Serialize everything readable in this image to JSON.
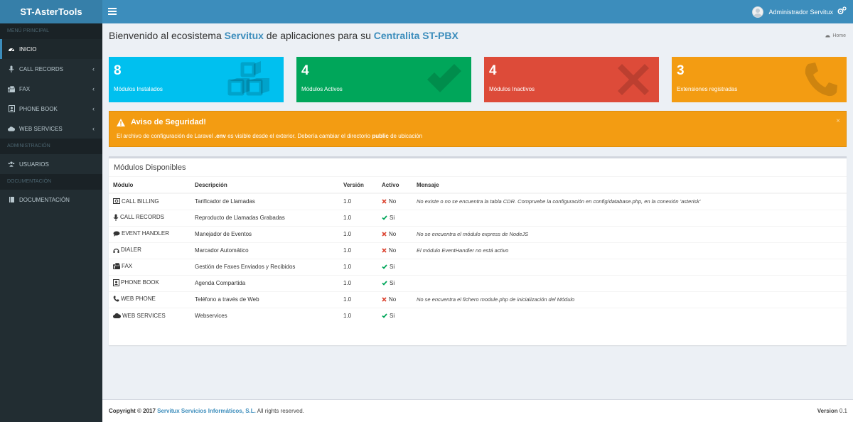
{
  "header": {
    "logo": "ST-AsterTools",
    "user_name": "Administrador Servitux",
    "icons": [
      "bars-icon",
      "user-avatar",
      "gears-icon"
    ]
  },
  "sidebar": {
    "sections": [
      {
        "title": "MENÚ PRINCIPAL",
        "items": [
          {
            "label": "INICIO",
            "icon": "dashboard-icon",
            "active": true,
            "chevron": false
          },
          {
            "label": "CALL RECORDS",
            "icon": "microphone-icon",
            "active": false,
            "chevron": true
          },
          {
            "label": "FAX",
            "icon": "fax-icon",
            "active": false,
            "chevron": true
          },
          {
            "label": "PHONE BOOK",
            "icon": "contact-book-icon",
            "active": false,
            "chevron": true
          },
          {
            "label": "WEB SERVICES",
            "icon": "cloud-icon",
            "active": false,
            "chevron": true
          }
        ]
      },
      {
        "title": "ADMINISTRACIÓN",
        "items": [
          {
            "label": "USUARIOS",
            "icon": "users-icon",
            "active": false,
            "chevron": false
          }
        ]
      },
      {
        "title": "DOCUMENTACIÓN",
        "items": [
          {
            "label": "DOCUMENTACIÓN",
            "icon": "book-icon",
            "active": false,
            "chevron": false
          }
        ]
      }
    ]
  },
  "page": {
    "title_part1": "Bienvenido al ecosistema ",
    "title_hl1": "Servitux",
    "title_part2": " de aplicaciones para su ",
    "title_hl2": "Centralita ST-PBX",
    "breadcrumb": "Home"
  },
  "stats": [
    {
      "value": "8",
      "label": "Módulos Instalados",
      "color": "#00c0ef",
      "icon": "cubes-icon"
    },
    {
      "value": "4",
      "label": "Módulos Activos",
      "color": "#00a65a",
      "icon": "check-icon"
    },
    {
      "value": "4",
      "label": "Módulos Inactivos",
      "color": "#dd4b39",
      "icon": "times-icon"
    },
    {
      "value": "3",
      "label": "Extensiones registradas",
      "color": "#f39c12",
      "icon": "phone-icon"
    }
  ],
  "alert": {
    "title": "Aviso de Seguridad!",
    "msg_part1": "El archivo de configuración de Laravel ",
    "msg_bold1": ".env",
    "msg_part2": " es visible desde el exterior. Debería cambiar el directorio ",
    "msg_bold2": "public",
    "msg_part3": " de ubicación",
    "close": "×"
  },
  "modules": {
    "title": "Módulos Disponibles",
    "columns": [
      "Módulo",
      "Descripción",
      "Versión",
      "Activo",
      "Mensaje"
    ],
    "rows": [
      {
        "name": "CALL BILLING",
        "icon": "money-icon",
        "desc": "Tarificador de Llamadas",
        "version": "1.0",
        "active": "No",
        "message": "No existe o no se encuentra la tabla CDR. Compruebe la configuración en config/database.php, en la conexión 'asterisk'"
      },
      {
        "name": "CALL RECORDS",
        "icon": "microphone-icon",
        "desc": "Reproducto de Llamadas Grabadas",
        "version": "1.0",
        "active": "Si",
        "message": ""
      },
      {
        "name": "EVENT HANDLER",
        "icon": "comments-icon",
        "desc": "Manejador de Eventos",
        "version": "1.0",
        "active": "No",
        "message": "No se encuentra el módulo express de NodeJS"
      },
      {
        "name": "DIALER",
        "icon": "headphones-icon",
        "desc": "Marcador Automático",
        "version": "1.0",
        "active": "No",
        "message": "El módulo EventHandler no está activo"
      },
      {
        "name": "FAX",
        "icon": "fax-icon",
        "desc": "Gestión de Faxes Enviados y Recibidos",
        "version": "1.0",
        "active": "Si",
        "message": ""
      },
      {
        "name": "PHONE BOOK",
        "icon": "contact-book-icon",
        "desc": "Agenda Compartida",
        "version": "1.0",
        "active": "Si",
        "message": ""
      },
      {
        "name": "WEB PHONE",
        "icon": "phone-icon",
        "desc": "Teléfono a través de Web",
        "version": "1.0",
        "active": "No",
        "message": "No se encuentra el fichero module.php de inicialización del Módulo"
      },
      {
        "name": "WEB SERVICES",
        "icon": "cloud-icon",
        "desc": "Webservices",
        "version": "1.0",
        "active": "Si",
        "message": ""
      }
    ]
  },
  "footer": {
    "copy_prefix": "Copyright © 2017 ",
    "company": "Servitux Servicios Informáticos, S.L.",
    "copy_suffix": " All rights reserved.",
    "version_label": "Version",
    "version_value": " 0.1"
  },
  "colors": {
    "brand": "#3c8dbc",
    "sidebar": "#222d32",
    "success": "#00a65a",
    "danger": "#dd4b39",
    "warning": "#f39c12"
  }
}
